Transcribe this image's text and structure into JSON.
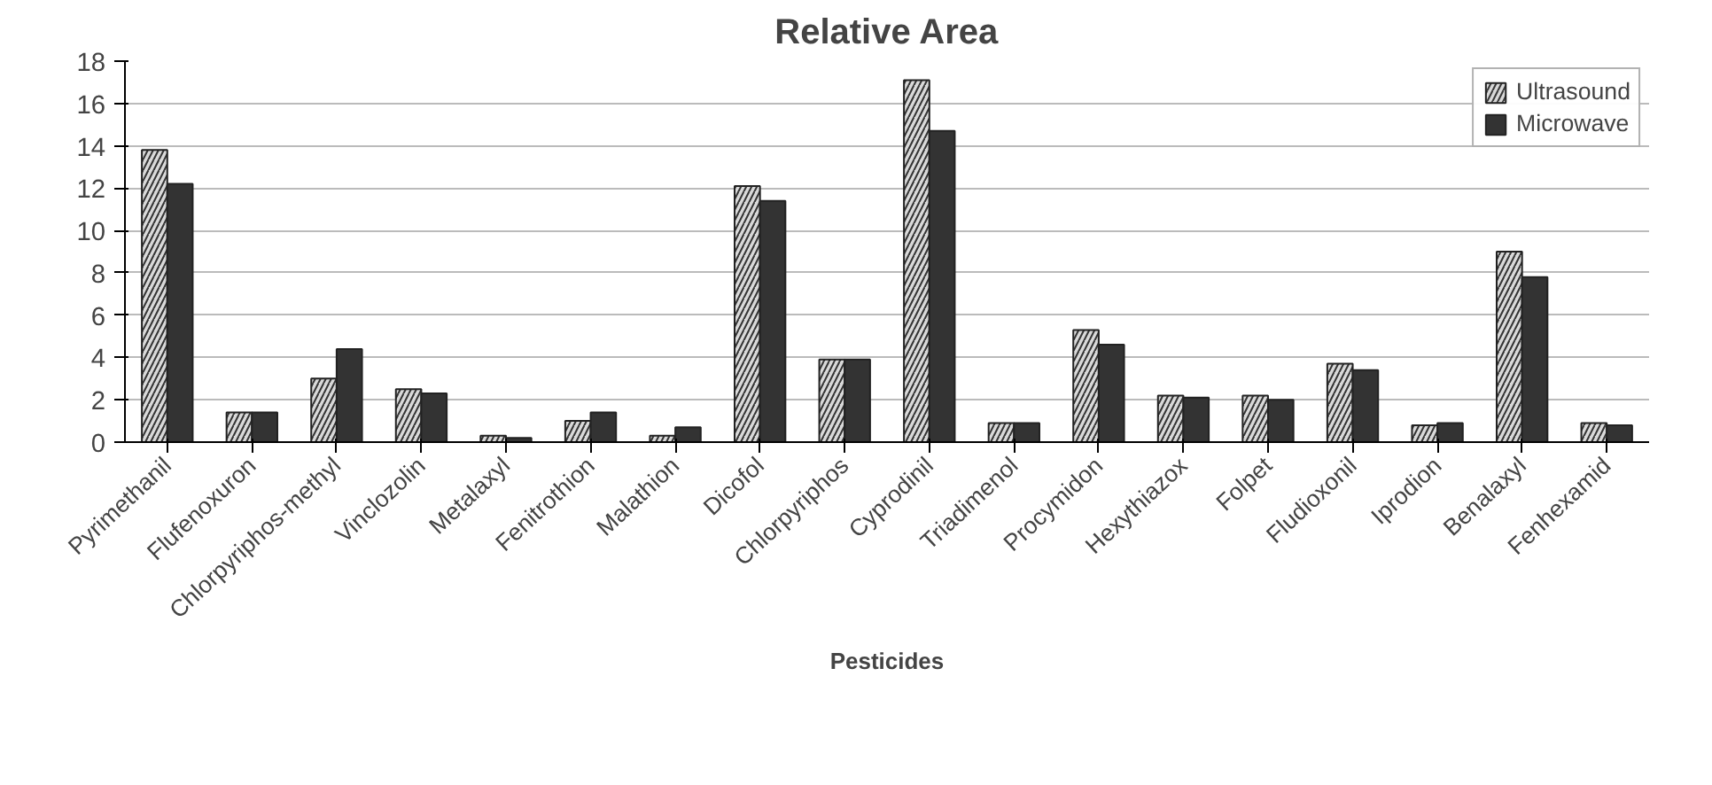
{
  "chart_data": {
    "type": "bar",
    "title": "Relative Area",
    "xlabel": "Pesticides",
    "categories": [
      "Pyrimethanil",
      "Flufenoxuron",
      "Chlorpyriphos-methyl",
      "Vinclozolin",
      "Metalaxyl",
      "Fenitrothion",
      "Malathion",
      "Dicofol",
      "Chlorpyriphos",
      "Cyprodinil",
      "Triadimenol",
      "Procymidon",
      "Hexythiazox",
      "Folpet",
      "Fludioxonil",
      "Iprodion",
      "Benalaxyl",
      "Fenhexamid"
    ],
    "series": [
      {
        "name": "Ultrasound",
        "color": "#d9d9d9",
        "values": [
          13.8,
          1.4,
          3.0,
          2.5,
          0.3,
          1.0,
          0.3,
          12.1,
          3.9,
          17.1,
          0.9,
          5.3,
          2.2,
          2.2,
          3.7,
          0.8,
          9.0,
          0.9
        ]
      },
      {
        "name": "Microwave",
        "color": "#333333",
        "values": [
          12.2,
          1.4,
          4.4,
          2.3,
          0.2,
          1.4,
          0.7,
          11.4,
          3.9,
          14.7,
          0.9,
          4.6,
          2.1,
          2.0,
          3.4,
          0.9,
          7.8,
          0.8
        ]
      }
    ],
    "ylim": [
      0,
      18
    ],
    "yticks": [
      0,
      2,
      4,
      6,
      8,
      10,
      12,
      14,
      16,
      18
    ],
    "grid": "y",
    "legend": "right"
  }
}
